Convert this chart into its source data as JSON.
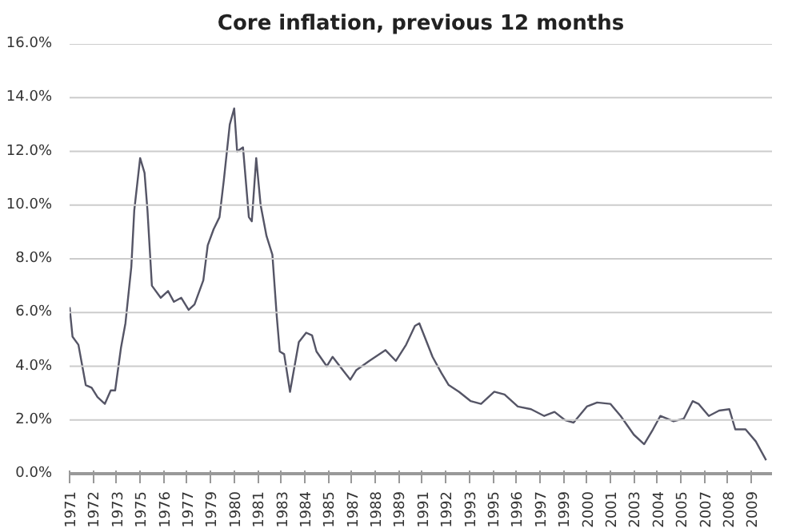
{
  "chart_data": {
    "type": "line",
    "title": "Core inflation, previous 12 months",
    "x": [
      "1971-01",
      "1971-03",
      "1971-07",
      "1971-12",
      "1972-04",
      "1972-08",
      "1973-01",
      "1973-05",
      "1973-08",
      "1973-12",
      "1974-03",
      "1974-07",
      "1974-09",
      "1975-01",
      "1975-04",
      "1975-06",
      "1975-09",
      "1976-03",
      "1976-08",
      "1976-12",
      "1977-05",
      "1977-10",
      "1978-02",
      "1978-08",
      "1978-11",
      "1979-03",
      "1979-07",
      "1979-10",
      "1980-02",
      "1980-05",
      "1980-07",
      "1980-11",
      "1981-03",
      "1981-05",
      "1981-08",
      "1981-11",
      "1982-03",
      "1982-07",
      "1982-10",
      "1982-12",
      "1983-03",
      "1983-07",
      "1984-01",
      "1984-06",
      "1984-10",
      "1985-01",
      "1985-08",
      "1985-12",
      "1986-07",
      "1986-12",
      "1987-04",
      "1988-01",
      "1988-12",
      "1989-07",
      "1990-02",
      "1990-08",
      "1990-11",
      "1991-08",
      "1992-02",
      "1992-07",
      "1993-02",
      "1993-10",
      "1994-05",
      "1995-02",
      "1995-09",
      "1996-06",
      "1997-03",
      "1997-12",
      "1998-07",
      "1999-02",
      "1999-08",
      "2000-05",
      "2000-12",
      "2001-09",
      "2002-04",
      "2003-01",
      "2003-08",
      "2004-02",
      "2004-07",
      "2005-04",
      "2005-11",
      "2006-05",
      "2006-09",
      "2007-04",
      "2007-11",
      "2008-06",
      "2008-10",
      "2009-05",
      "2009-12",
      "2010-07"
    ],
    "series": [
      {
        "color": "#555566",
        "values": [
          6.2,
          5.1,
          4.8,
          3.3,
          3.2,
          2.85,
          2.6,
          3.1,
          3.1,
          4.7,
          5.6,
          7.7,
          9.8,
          11.75,
          11.2,
          9.8,
          7.0,
          6.55,
          6.8,
          6.4,
          6.55,
          6.1,
          6.3,
          7.2,
          8.5,
          9.1,
          9.55,
          10.95,
          13.0,
          13.6,
          12.0,
          12.15,
          9.55,
          9.4,
          11.75,
          10.0,
          8.85,
          8.15,
          5.85,
          4.55,
          4.45,
          3.05,
          4.9,
          5.25,
          5.15,
          4.55,
          4.0,
          4.35,
          3.85,
          3.5,
          3.85,
          4.2,
          4.6,
          4.2,
          4.8,
          5.5,
          5.6,
          4.35,
          3.75,
          3.3,
          3.05,
          2.7,
          2.6,
          3.05,
          2.95,
          2.5,
          2.4,
          2.15,
          2.3,
          2.0,
          1.9,
          2.5,
          2.65,
          2.6,
          2.15,
          1.45,
          1.1,
          1.65,
          2.15,
          1.95,
          2.05,
          2.7,
          2.6,
          2.15,
          2.35,
          2.4,
          1.65,
          1.65,
          1.2,
          0.5
        ]
      }
    ],
    "xlim": [
      "1971-01",
      "2010-11"
    ],
    "xticks": [
      {
        "value": "1971-01",
        "label": "1971"
      },
      {
        "value": "1972-05",
        "label": "1972"
      },
      {
        "value": "1973-09",
        "label": "1973"
      },
      {
        "value": "1975-01",
        "label": "1975"
      },
      {
        "value": "1976-05",
        "label": "1976"
      },
      {
        "value": "1977-09",
        "label": "1977"
      },
      {
        "value": "1979-01",
        "label": "1979"
      },
      {
        "value": "1980-05",
        "label": "1980"
      },
      {
        "value": "1981-09",
        "label": "1981"
      },
      {
        "value": "1983-01",
        "label": "1983"
      },
      {
        "value": "1984-05",
        "label": "1984"
      },
      {
        "value": "1985-09",
        "label": "1985"
      },
      {
        "value": "1987-01",
        "label": "1987"
      },
      {
        "value": "1988-05",
        "label": "1988"
      },
      {
        "value": "1989-09",
        "label": "1989"
      },
      {
        "value": "1991-01",
        "label": "1991"
      },
      {
        "value": "1992-05",
        "label": "1992"
      },
      {
        "value": "1993-09",
        "label": "1993"
      },
      {
        "value": "1995-01",
        "label": "1995"
      },
      {
        "value": "1996-05",
        "label": "1996"
      },
      {
        "value": "1997-09",
        "label": "1997"
      },
      {
        "value": "1999-01",
        "label": "1999"
      },
      {
        "value": "2000-05",
        "label": "2000"
      },
      {
        "value": "2001-09",
        "label": "2001"
      },
      {
        "value": "2003-01",
        "label": "2003"
      },
      {
        "value": "2004-05",
        "label": "2004"
      },
      {
        "value": "2005-09",
        "label": "2005"
      },
      {
        "value": "2007-01",
        "label": "2007"
      },
      {
        "value": "2008-05",
        "label": "2008"
      },
      {
        "value": "2009-09",
        "label": "2009"
      }
    ],
    "ylim": [
      0,
      16
    ],
    "yticks": [
      {
        "value": 0,
        "label": "0.0%"
      },
      {
        "value": 2,
        "label": "2.0%"
      },
      {
        "value": 4,
        "label": "4.0%"
      },
      {
        "value": 6,
        "label": "6.0%"
      },
      {
        "value": 8,
        "label": "8.0%"
      },
      {
        "value": 10,
        "label": "10.0%"
      },
      {
        "value": 12,
        "label": "12.0%"
      },
      {
        "value": 14,
        "label": "14.0%"
      },
      {
        "value": 16,
        "label": "16.0%"
      }
    ],
    "grid": "y",
    "line_style": "solid"
  }
}
